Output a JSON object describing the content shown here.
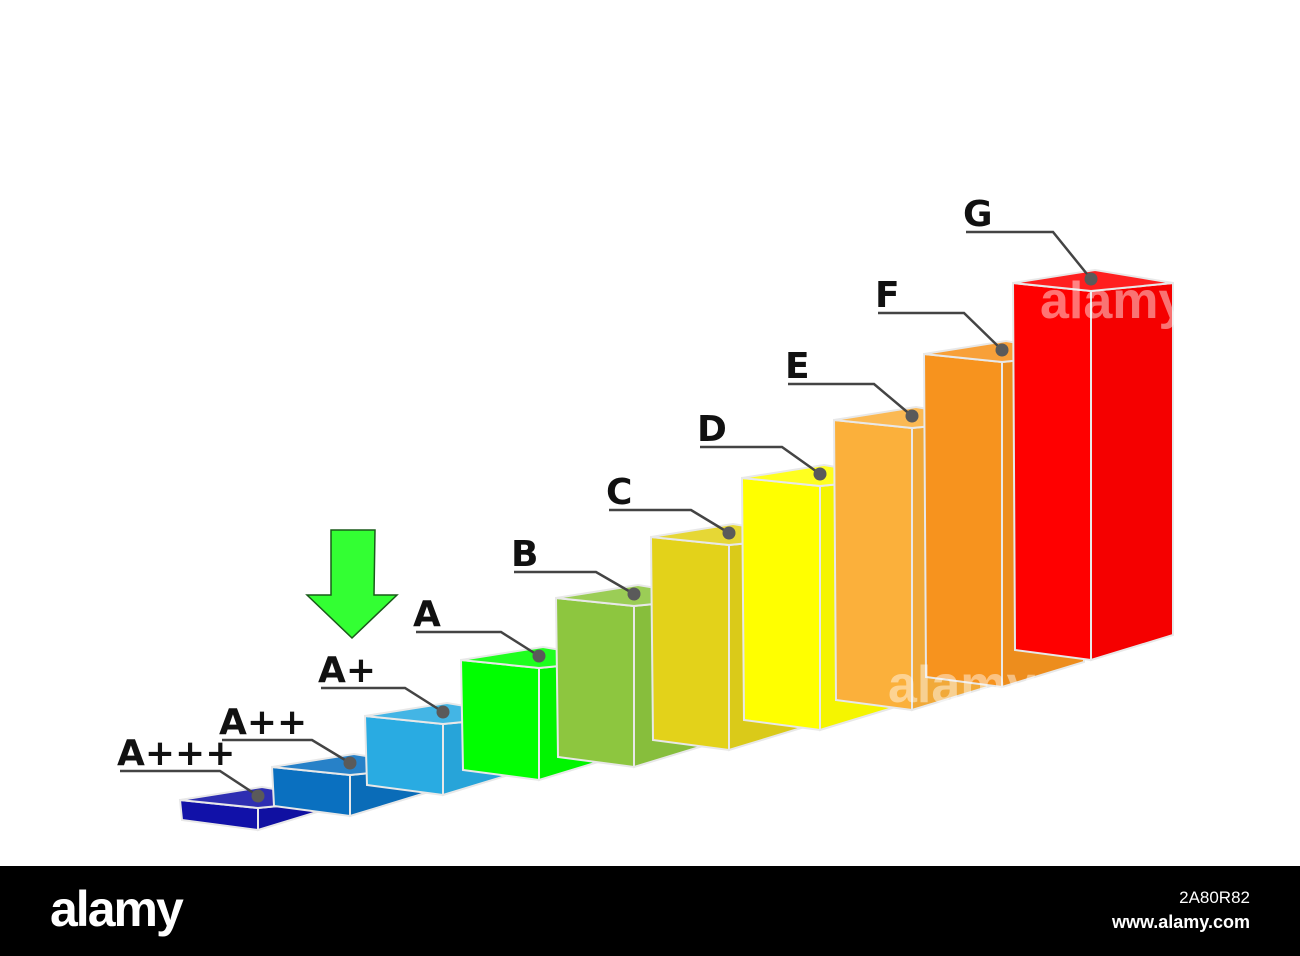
{
  "diagram": {
    "bars": [
      {
        "label": "A+++",
        "color": "#1111a8"
      },
      {
        "label": "A++",
        "color": "#0a70c0"
      },
      {
        "label": "A+",
        "color": "#29abe2"
      },
      {
        "label": "A",
        "color": "#00ff00"
      },
      {
        "label": "B",
        "color": "#8dc63f"
      },
      {
        "label": "C",
        "color": "#e3d21a"
      },
      {
        "label": "D",
        "color": "#ffff00"
      },
      {
        "label": "E",
        "color": "#fbb03b"
      },
      {
        "label": "F",
        "color": "#f7931e"
      },
      {
        "label": "G",
        "color": "#ff0000"
      }
    ],
    "highlighted": "A+",
    "arrow_color": "#33ff33",
    "watermark": "alamy"
  },
  "footer": {
    "logo": "alamy",
    "image_id": "2A80R82",
    "url": "www.alamy.com"
  }
}
